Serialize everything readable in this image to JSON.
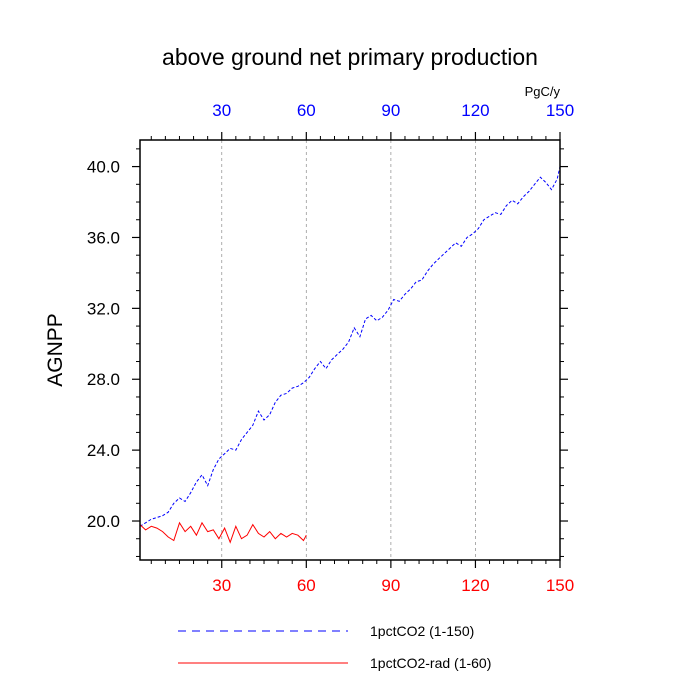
{
  "chart_data": {
    "type": "line",
    "title": "above ground net primary production",
    "ylabel": "AGNPP",
    "xlabel": "",
    "top_axis_unit": "PgC/y",
    "xlim": [
      1,
      150
    ],
    "ylim": [
      17.8,
      41.5
    ],
    "x_ticks": [
      30,
      60,
      90,
      120,
      150
    ],
    "x_tick_labels": [
      "30",
      "60",
      "90",
      "120",
      "150"
    ],
    "y_ticks": [
      20,
      24,
      28,
      32,
      36,
      40
    ],
    "y_tick_labels": [
      "20.0",
      "24.0",
      "28.0",
      "32.0",
      "36.0",
      "40.0"
    ],
    "y_minor_step": 1,
    "x_minor_step": 5,
    "vertical_grid": true,
    "bottom_axis_color": "#ff0000",
    "top_axis_color": "#0000ff",
    "legend_position": "bottom",
    "series": [
      {
        "name": "1pctCO2 (1-150)",
        "color": "#0000ff",
        "dash": "dashed",
        "x": [
          1,
          3,
          5,
          7,
          9,
          11,
          13,
          15,
          17,
          19,
          21,
          23,
          25,
          27,
          29,
          31,
          33,
          35,
          37,
          39,
          41,
          43,
          45,
          47,
          49,
          51,
          53,
          55,
          57,
          59,
          61,
          63,
          65,
          67,
          69,
          71,
          73,
          75,
          77,
          79,
          81,
          83,
          85,
          87,
          89,
          91,
          93,
          95,
          97,
          99,
          101,
          103,
          105,
          107,
          109,
          111,
          113,
          115,
          117,
          119,
          121,
          123,
          125,
          127,
          129,
          131,
          133,
          135,
          137,
          139,
          141,
          143,
          145,
          147,
          149,
          150
        ],
        "y": [
          19.7,
          19.9,
          20.1,
          20.2,
          20.3,
          20.5,
          21.0,
          21.3,
          21.1,
          21.6,
          22.2,
          22.6,
          22.0,
          22.9,
          23.5,
          23.8,
          24.1,
          24.0,
          24.6,
          25.0,
          25.4,
          26.2,
          25.7,
          26.0,
          26.7,
          27.1,
          27.2,
          27.5,
          27.6,
          27.8,
          28.1,
          28.6,
          29.0,
          28.6,
          29.1,
          29.4,
          29.7,
          30.1,
          30.9,
          30.4,
          31.4,
          31.6,
          31.3,
          31.5,
          31.9,
          32.5,
          32.4,
          32.8,
          33.1,
          33.5,
          33.6,
          34.1,
          34.5,
          34.8,
          35.1,
          35.4,
          35.7,
          35.5,
          36.0,
          36.2,
          36.5,
          37.0,
          37.2,
          37.4,
          37.3,
          37.8,
          38.1,
          37.9,
          38.3,
          38.6,
          39.0,
          39.4,
          39.1,
          38.7,
          39.3,
          40.0
        ]
      },
      {
        "name": "1pctCO2-rad (1-60)",
        "color": "#ff0000",
        "dash": "solid",
        "x": [
          1,
          3,
          5,
          7,
          9,
          11,
          13,
          15,
          17,
          19,
          21,
          23,
          25,
          27,
          29,
          31,
          33,
          35,
          37,
          39,
          41,
          43,
          45,
          47,
          49,
          51,
          53,
          55,
          57,
          59,
          60
        ],
        "y": [
          19.8,
          19.5,
          19.7,
          19.6,
          19.4,
          19.1,
          18.9,
          19.9,
          19.4,
          19.7,
          19.2,
          19.9,
          19.4,
          19.5,
          19.0,
          19.6,
          18.8,
          19.7,
          19.0,
          19.2,
          19.8,
          19.3,
          19.1,
          19.4,
          19.0,
          19.3,
          19.1,
          19.3,
          19.2,
          18.9,
          19.2
        ]
      }
    ]
  }
}
